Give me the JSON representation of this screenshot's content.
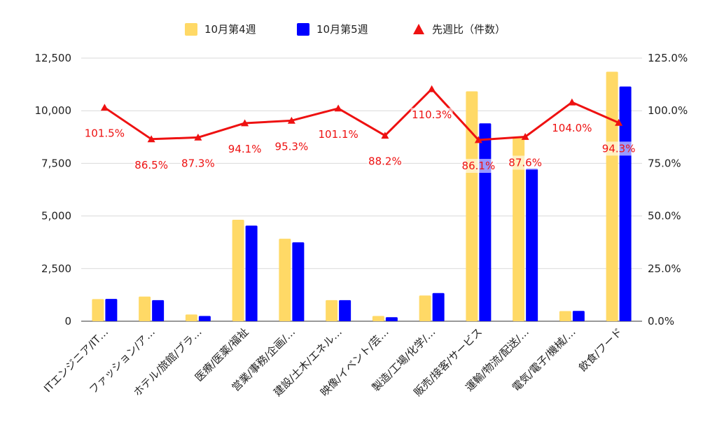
{
  "chart_data": {
    "type": "bar",
    "categories": [
      "ITエンジニア/IT…",
      "ファッション/ア…",
      "ホテル/旅館/ブラ…",
      "医療/医薬/福祉",
      "営業/事務/企画/…",
      "建設/土木/エネル…",
      "映像/イベント/芸…",
      "製造/工場/化学/…",
      "販売/接客/サービス",
      "運輸/物流/配送/…",
      "電気/電子/機械/…",
      "飲食/フード"
    ],
    "series": [
      {
        "name": "10月第4週",
        "type": "bar",
        "axis": "left",
        "color": "#ffd966",
        "values": [
          1050,
          1170,
          320,
          4820,
          3920,
          1000,
          250,
          1220,
          10920,
          8700,
          480,
          11850
        ]
      },
      {
        "name": "10月第5週",
        "type": "bar",
        "axis": "left",
        "color": "#0000ff",
        "values": [
          1060,
          1000,
          250,
          4540,
          3750,
          1000,
          190,
          1340,
          9400,
          7250,
          490,
          11150
        ]
      },
      {
        "name": "先週比（件数）",
        "type": "line",
        "axis": "right",
        "color": "#ee1111",
        "marker": "triangle",
        "values": [
          101.5,
          86.5,
          87.3,
          94.1,
          95.3,
          101.1,
          88.2,
          110.3,
          86.1,
          87.6,
          104.0,
          94.3
        ],
        "labels": [
          "101.5%",
          "86.5%",
          "87.3%",
          "94.1%",
          "95.3%",
          "101.1%",
          "88.2%",
          "110.3%",
          "86.1%",
          "87.6%",
          "104.0%",
          "94.3%"
        ]
      }
    ],
    "y_left": {
      "min": 0,
      "max": 12500,
      "ticks": [
        0,
        2500,
        5000,
        7500,
        10000,
        12500
      ],
      "tick_labels": [
        "0",
        "2,500",
        "5,000",
        "7,500",
        "10,000",
        "12,500"
      ]
    },
    "y_right": {
      "min": 0,
      "max": 125,
      "ticks": [
        0,
        25,
        50,
        75,
        100,
        125
      ],
      "tick_labels": [
        "0.0%",
        "25.0%",
        "50.0%",
        "75.0%",
        "100.0%",
        "125.0%"
      ]
    },
    "grid": true,
    "legend_position": "top",
    "title": "",
    "xlabel": "",
    "ylabel": ""
  }
}
